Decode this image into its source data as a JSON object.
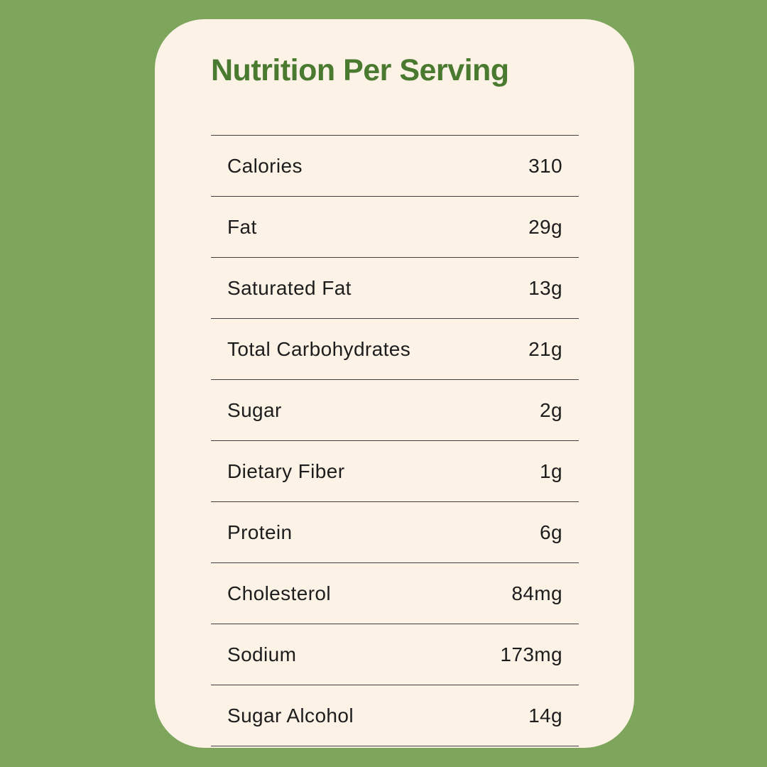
{
  "colors": {
    "background": "#7DA55C",
    "card": "#FCF2E6",
    "title": "#4A7A2F",
    "text": "#1D1D1D",
    "divider": "#3F3F3F"
  },
  "title": "Nutrition Per Serving",
  "nutrition": {
    "rows": [
      {
        "label": "Calories",
        "value": "310"
      },
      {
        "label": "Fat",
        "value": "29g"
      },
      {
        "label": "Saturated Fat",
        "value": "13g"
      },
      {
        "label": "Total Carbohydrates",
        "value": "21g"
      },
      {
        "label": "Sugar",
        "value": "2g"
      },
      {
        "label": "Dietary Fiber",
        "value": "1g"
      },
      {
        "label": "Protein",
        "value": "6g"
      },
      {
        "label": "Cholesterol",
        "value": "84mg"
      },
      {
        "label": "Sodium",
        "value": "173mg"
      },
      {
        "label": "Sugar Alcohol",
        "value": "14g"
      }
    ]
  }
}
